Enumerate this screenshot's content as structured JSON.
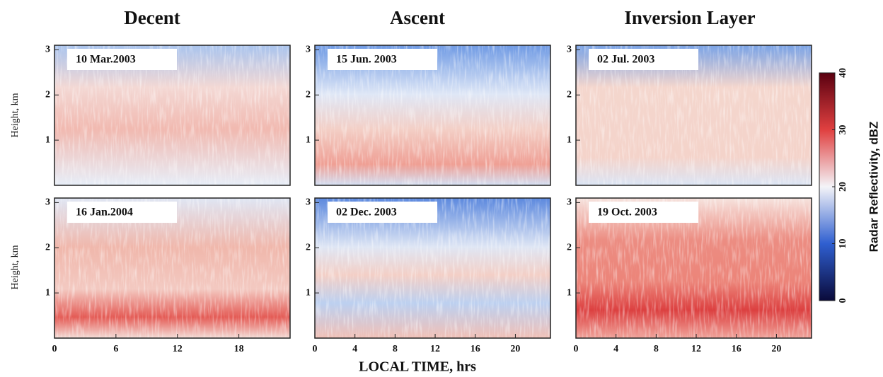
{
  "column_titles": [
    "Decent",
    "Ascent",
    "Inversion Layer"
  ],
  "y_label": "Height, km",
  "x_label": "LOCAL TIME, hrs",
  "colorbar": {
    "label": "Radar Reflectivity, dBZ",
    "lim": [
      0,
      40
    ],
    "ticks": [
      0,
      10,
      20,
      30,
      40
    ],
    "colors": [
      "#0a0a3a",
      "#2f5fd0",
      "#f4f4f8",
      "#e04040",
      "#5a0010"
    ]
  },
  "chart_data": [
    {
      "type": "heatmap",
      "title": "10 Mar.2003",
      "xlim": [
        0,
        23
      ],
      "ylim": [
        0,
        3.1
      ],
      "yticks": [
        1,
        2,
        3
      ]
    },
    {
      "type": "heatmap",
      "title": "15 Jun. 2003",
      "xlim": [
        0,
        23.5
      ],
      "ylim": [
        0,
        3.1
      ],
      "yticks": [
        1,
        2,
        3
      ]
    },
    {
      "type": "heatmap",
      "title": "02 Jul. 2003",
      "xlim": [
        0,
        23.5
      ],
      "ylim": [
        0,
        3.1
      ],
      "yticks": [
        1,
        2,
        3
      ]
    },
    {
      "type": "heatmap",
      "title": "16 Jan.2004",
      "xlim": [
        0,
        23
      ],
      "ylim": [
        0,
        3.1
      ],
      "yticks": [
        1,
        2,
        3
      ],
      "xticks": [
        0,
        6,
        12,
        18
      ]
    },
    {
      "type": "heatmap",
      "title": "02 Dec. 2003",
      "xlim": [
        0,
        23.5
      ],
      "ylim": [
        0,
        3.1
      ],
      "yticks": [
        1,
        2,
        3
      ],
      "xticks": [
        0,
        4,
        8,
        12,
        16,
        20
      ]
    },
    {
      "type": "heatmap",
      "title": "19 Oct. 2003",
      "xlim": [
        0,
        23.5
      ],
      "ylim": [
        0,
        3.1
      ],
      "yticks": [
        1,
        2,
        3
      ],
      "xticks": [
        0,
        4,
        8,
        12,
        16,
        20
      ]
    }
  ]
}
